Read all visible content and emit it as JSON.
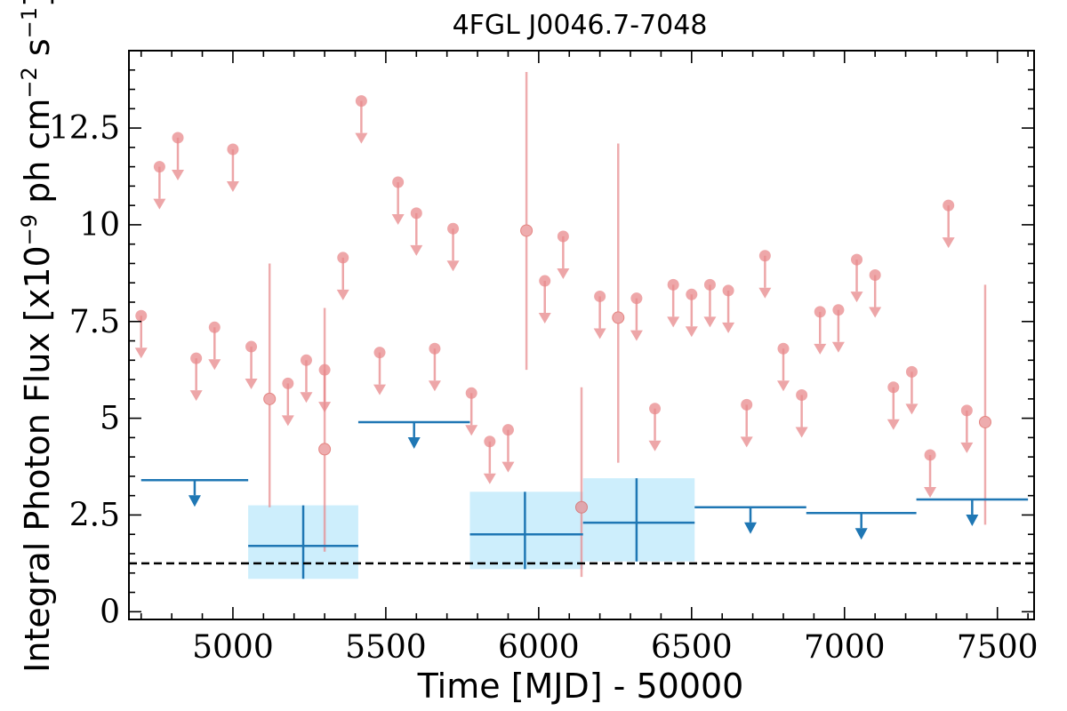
{
  "chart_data": {
    "type": "scatter",
    "title": "4FGL J0046.7-7048",
    "xlabel": "Time [MJD] - 50000",
    "ylabel": "Integral Photon Flux [x10",
    "ylabel_exp": "−9",
    "ylabel_mid": " ph cm",
    "ylabel_exp2": "−2",
    "ylabel_end": " s",
    "ylabel_exp3": "−1",
    "ylabel_close": "]",
    "xlim": [
      4660,
      7620
    ],
    "ylim": [
      -0.2,
      14.5
    ],
    "xticks": [
      5000,
      5500,
      6000,
      6500,
      7000,
      7500
    ],
    "xtick_labels": [
      "5000",
      "5500",
      "6000",
      "6500",
      "7000",
      "7500"
    ],
    "yticks": [
      0,
      2.5,
      5,
      7.5,
      10,
      12.5
    ],
    "ytick_labels": [
      "0",
      "2.5",
      "5",
      "7.5",
      "10",
      "12.5"
    ],
    "reference_line_y": 1.25,
    "colors": {
      "short_bins": "#e8898c",
      "long_bins": "#1f77b4",
      "long_bin_band": "#cdeefc",
      "reference_line": "#000000"
    },
    "short_bin_upper_limits": [
      {
        "x": 4700,
        "y": 7.65
      },
      {
        "x": 4760,
        "y": 11.5
      },
      {
        "x": 4820,
        "y": 12.25
      },
      {
        "x": 4880,
        "y": 6.55
      },
      {
        "x": 4940,
        "y": 7.35
      },
      {
        "x": 5000,
        "y": 11.95
      },
      {
        "x": 5060,
        "y": 6.85
      },
      {
        "x": 5180,
        "y": 5.9
      },
      {
        "x": 5240,
        "y": 6.5
      },
      {
        "x": 5300,
        "y": 6.25
      },
      {
        "x": 5360,
        "y": 9.15
      },
      {
        "x": 5420,
        "y": 13.2
      },
      {
        "x": 5480,
        "y": 6.7
      },
      {
        "x": 5540,
        "y": 11.1
      },
      {
        "x": 5600,
        "y": 10.3
      },
      {
        "x": 5660,
        "y": 6.8
      },
      {
        "x": 5720,
        "y": 9.9
      },
      {
        "x": 5780,
        "y": 5.65
      },
      {
        "x": 5840,
        "y": 4.4
      },
      {
        "x": 5900,
        "y": 4.7
      },
      {
        "x": 6020,
        "y": 8.55
      },
      {
        "x": 6080,
        "y": 9.7
      },
      {
        "x": 6200,
        "y": 8.15
      },
      {
        "x": 6320,
        "y": 8.1
      },
      {
        "x": 6380,
        "y": 5.25
      },
      {
        "x": 6440,
        "y": 8.45
      },
      {
        "x": 6500,
        "y": 8.2
      },
      {
        "x": 6560,
        "y": 8.45
      },
      {
        "x": 6620,
        "y": 8.3
      },
      {
        "x": 6680,
        "y": 5.35
      },
      {
        "x": 6740,
        "y": 9.2
      },
      {
        "x": 6800,
        "y": 6.8
      },
      {
        "x": 6860,
        "y": 5.6
      },
      {
        "x": 6920,
        "y": 7.75
      },
      {
        "x": 6980,
        "y": 7.8
      },
      {
        "x": 7040,
        "y": 9.1
      },
      {
        "x": 7100,
        "y": 8.7
      },
      {
        "x": 7160,
        "y": 5.8
      },
      {
        "x": 7220,
        "y": 6.2
      },
      {
        "x": 7280,
        "y": 4.05
      },
      {
        "x": 7340,
        "y": 10.5
      },
      {
        "x": 7400,
        "y": 5.2
      }
    ],
    "short_bin_detections": [
      {
        "x": 5120,
        "y": 5.5,
        "ylo": 2.7,
        "yhi": 9.0
      },
      {
        "x": 5300,
        "y": 4.2,
        "ylo": 1.55,
        "yhi": 7.85
      },
      {
        "x": 5960,
        "y": 9.85,
        "ylo": 6.25,
        "yhi": 13.95
      },
      {
        "x": 6140,
        "y": 2.7,
        "ylo": 0.9,
        "yhi": 5.8
      },
      {
        "x": 6260,
        "y": 7.6,
        "ylo": 3.85,
        "yhi": 12.1
      },
      {
        "x": 7460,
        "y": 4.9,
        "ylo": 2.25,
        "yhi": 8.45
      }
    ],
    "long_bin_upper_limits": [
      {
        "x0": 4700,
        "x1": 5050,
        "y": 3.4
      },
      {
        "x0": 5410,
        "x1": 5775,
        "y": 4.9
      },
      {
        "x0": 6510,
        "x1": 6875,
        "y": 2.7
      },
      {
        "x0": 6875,
        "x1": 7235,
        "y": 2.55
      },
      {
        "x0": 7235,
        "x1": 7600,
        "y": 2.9
      }
    ],
    "long_bin_detections": [
      {
        "x": 5230,
        "x0": 5050,
        "x1": 5410,
        "y": 1.7,
        "ylo": 0.85,
        "yhi": 2.75
      },
      {
        "x": 5955,
        "x0": 5775,
        "x1": 6145,
        "y": 2.0,
        "ylo": 1.1,
        "yhi": 3.1
      },
      {
        "x": 6320,
        "x0": 6145,
        "x1": 6510,
        "y": 2.3,
        "ylo": 1.3,
        "yhi": 3.45
      }
    ]
  }
}
